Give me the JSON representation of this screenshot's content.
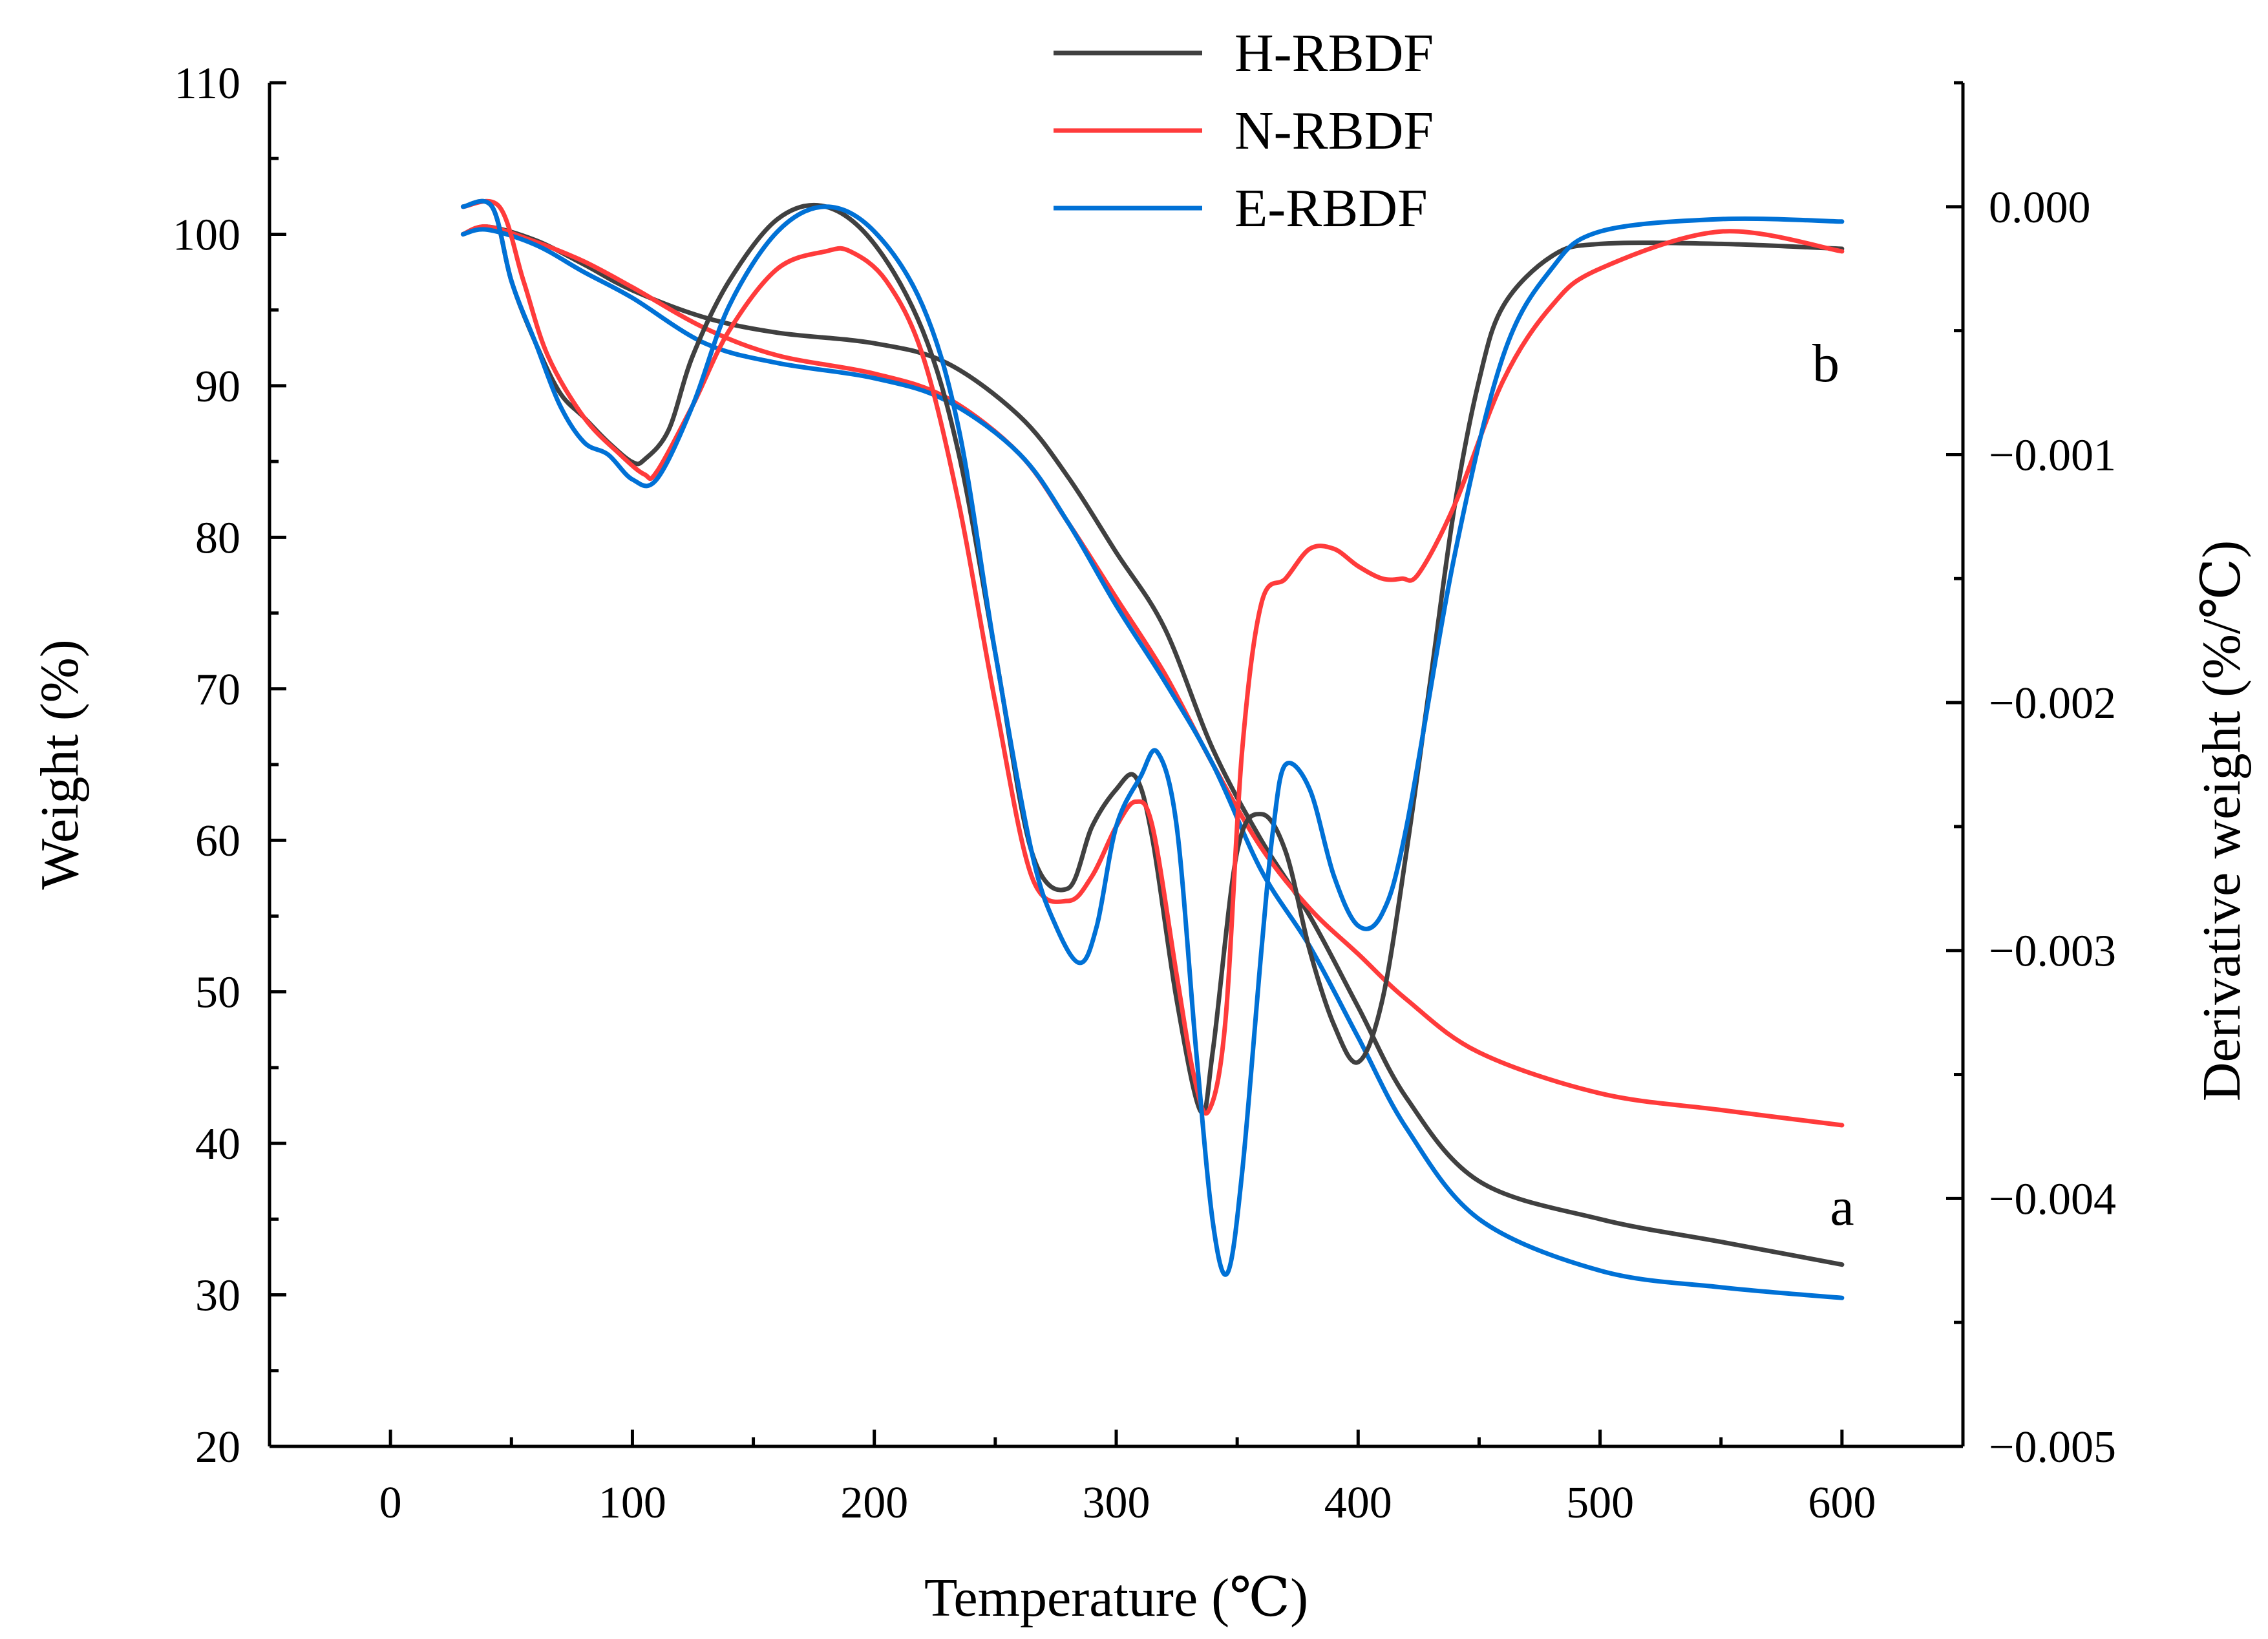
{
  "chart_data": {
    "type": "line",
    "xlabel": "Temperature (℃)",
    "ylabel_left": "Weight (%)",
    "ylabel_right": "Derivative weight (%/℃)",
    "xlim": [
      -50,
      650
    ],
    "ylim_left": [
      20,
      110
    ],
    "ylim_right": [
      -0.005,
      0.0005
    ],
    "x_ticks": [
      0,
      100,
      200,
      300,
      400,
      500,
      600
    ],
    "x_tick_labels": [
      "0",
      "100",
      "200",
      "300",
      "400",
      "500",
      "600"
    ],
    "y_left_ticks": [
      20,
      30,
      40,
      50,
      60,
      70,
      80,
      90,
      100,
      110
    ],
    "y_left_tick_labels": [
      "20",
      "30",
      "40",
      "50",
      "60",
      "70",
      "80",
      "90",
      "100",
      "110"
    ],
    "y_right_ticks": [
      0,
      -0.001,
      -0.002,
      -0.003,
      -0.004,
      -0.005
    ],
    "y_right_tick_labels": [
      "0.000",
      "−0.001",
      "−0.002",
      "−0.003",
      "−0.004",
      "−0.005"
    ],
    "grid": false,
    "legend_position": "top-center",
    "annotations": [
      {
        "text": "b",
        "x": 595,
        "y": 90.5
      },
      {
        "text": "a",
        "x": 600,
        "y": 35.5
      }
    ],
    "series": [
      {
        "name": "H-RBDF",
        "color": "#404040",
        "curve": "TG (a)",
        "axis": "left",
        "x": [
          30,
          40,
          60,
          80,
          100,
          130,
          160,
          200,
          230,
          260,
          280,
          300,
          320,
          340,
          360,
          380,
          400,
          420,
          450,
          500,
          550,
          600
        ],
        "y": [
          100,
          100.5,
          99.6,
          98,
          96.3,
          94.5,
          93.5,
          92.8,
          91.5,
          88,
          84,
          79,
          74,
          66,
          60,
          55,
          49,
          43,
          37.5,
          35,
          33.5,
          32
        ]
      },
      {
        "name": "N-RBDF",
        "color": "#ff3b3b",
        "curve": "TG (a)",
        "axis": "left",
        "x": [
          30,
          40,
          60,
          80,
          100,
          130,
          160,
          200,
          230,
          260,
          280,
          300,
          320,
          340,
          360,
          380,
          400,
          420,
          450,
          500,
          550,
          600
        ],
        "y": [
          100,
          100.5,
          99.5,
          98.2,
          96.5,
          93.8,
          92,
          90.8,
          89.2,
          85.5,
          81,
          76,
          71,
          65,
          59.5,
          55.5,
          52.5,
          49.5,
          46,
          43.3,
          42.2,
          41.2
        ]
      },
      {
        "name": "E-RBDF",
        "color": "#0071d6",
        "curve": "TG (a)",
        "axis": "left",
        "x": [
          30,
          40,
          60,
          80,
          100,
          130,
          160,
          200,
          230,
          260,
          280,
          300,
          320,
          340,
          360,
          380,
          400,
          420,
          450,
          500,
          550,
          600
        ],
        "y": [
          100,
          100.3,
          99.3,
          97.5,
          95.8,
          92.8,
          91.5,
          90.5,
          89,
          85.5,
          81,
          75.5,
          70.5,
          65,
          58,
          53,
          47,
          41,
          35,
          31.6,
          30.5,
          29.8
        ]
      },
      {
        "name": "H-RBDF",
        "color": "#404040",
        "curve": "DTG (b)",
        "axis": "right",
        "x": [
          30,
          42,
          50,
          60,
          70,
          80,
          90,
          100,
          105,
          115,
          125,
          140,
          160,
          180,
          200,
          220,
          235,
          250,
          265,
          280,
          290,
          300,
          308,
          315,
          325,
          335,
          340,
          350,
          360,
          370,
          380,
          390,
          400,
          410,
          420,
          430,
          440,
          450,
          460,
          480,
          500,
          550,
          600
        ],
        "y": [
          0,
          0,
          -0.0003,
          -0.00055,
          -0.00075,
          -0.00085,
          -0.00095,
          -0.00103,
          -0.00102,
          -0.0009,
          -0.0006,
          -0.0003,
          -5e-05,
          0,
          -0.00015,
          -0.0005,
          -0.001,
          -0.0018,
          -0.0026,
          -0.00275,
          -0.0025,
          -0.00235,
          -0.0023,
          -0.00255,
          -0.0032,
          -0.00365,
          -0.0034,
          -0.0026,
          -0.00245,
          -0.0026,
          -0.003,
          -0.0033,
          -0.00345,
          -0.0032,
          -0.0026,
          -0.0019,
          -0.0012,
          -0.0007,
          -0.0004,
          -0.0002,
          -0.00015,
          -0.00015,
          -0.00017
        ]
      },
      {
        "name": "N-RBDF",
        "color": "#ff3b3b",
        "curve": "DTG (b)",
        "axis": "right",
        "x": [
          30,
          45,
          55,
          65,
          80,
          95,
          105,
          110,
          125,
          140,
          160,
          180,
          190,
          205,
          220,
          235,
          250,
          265,
          280,
          290,
          300,
          308,
          315,
          325,
          332,
          338,
          345,
          352,
          360,
          370,
          380,
          390,
          400,
          410,
          418,
          425,
          440,
          460,
          480,
          500,
          550,
          600
        ],
        "y": [
          0,
          0,
          -0.0003,
          -0.0006,
          -0.00085,
          -0.001,
          -0.00108,
          -0.00107,
          -0.0008,
          -0.0005,
          -0.00025,
          -0.00018,
          -0.00018,
          -0.0003,
          -0.0006,
          -0.0012,
          -0.002,
          -0.0027,
          -0.0028,
          -0.0027,
          -0.0025,
          -0.0024,
          -0.0025,
          -0.0031,
          -0.0035,
          -0.00365,
          -0.0033,
          -0.0022,
          -0.0016,
          -0.0015,
          -0.00138,
          -0.00138,
          -0.00145,
          -0.0015,
          -0.0015,
          -0.00148,
          -0.0012,
          -0.0007,
          -0.0004,
          -0.00025,
          -0.0001,
          -0.00018
        ]
      },
      {
        "name": "E-RBDF",
        "color": "#0071d6",
        "curve": "DTG (b)",
        "axis": "right",
        "x": [
          30,
          42,
          50,
          60,
          70,
          80,
          90,
          100,
          110,
          125,
          140,
          160,
          180,
          200,
          220,
          235,
          250,
          265,
          275,
          285,
          292,
          300,
          310,
          317,
          325,
          333,
          340,
          346,
          352,
          360,
          365,
          370,
          380,
          390,
          400,
          410,
          420,
          440,
          460,
          480,
          500,
          550,
          600
        ],
        "y": [
          0,
          0,
          -0.0003,
          -0.00055,
          -0.0008,
          -0.00095,
          -0.001,
          -0.0011,
          -0.0011,
          -0.0008,
          -0.0004,
          -0.0001,
          0,
          -0.0001,
          -0.0004,
          -0.0009,
          -0.0018,
          -0.0026,
          -0.0029,
          -0.00305,
          -0.0029,
          -0.0025,
          -0.0023,
          -0.0022,
          -0.0025,
          -0.0034,
          -0.0041,
          -0.0043,
          -0.0039,
          -0.003,
          -0.0025,
          -0.00225,
          -0.00235,
          -0.0027,
          -0.0029,
          -0.00285,
          -0.0025,
          -0.0014,
          -0.0006,
          -0.00025,
          -0.0001,
          -5e-05,
          -6e-05
        ]
      }
    ]
  }
}
